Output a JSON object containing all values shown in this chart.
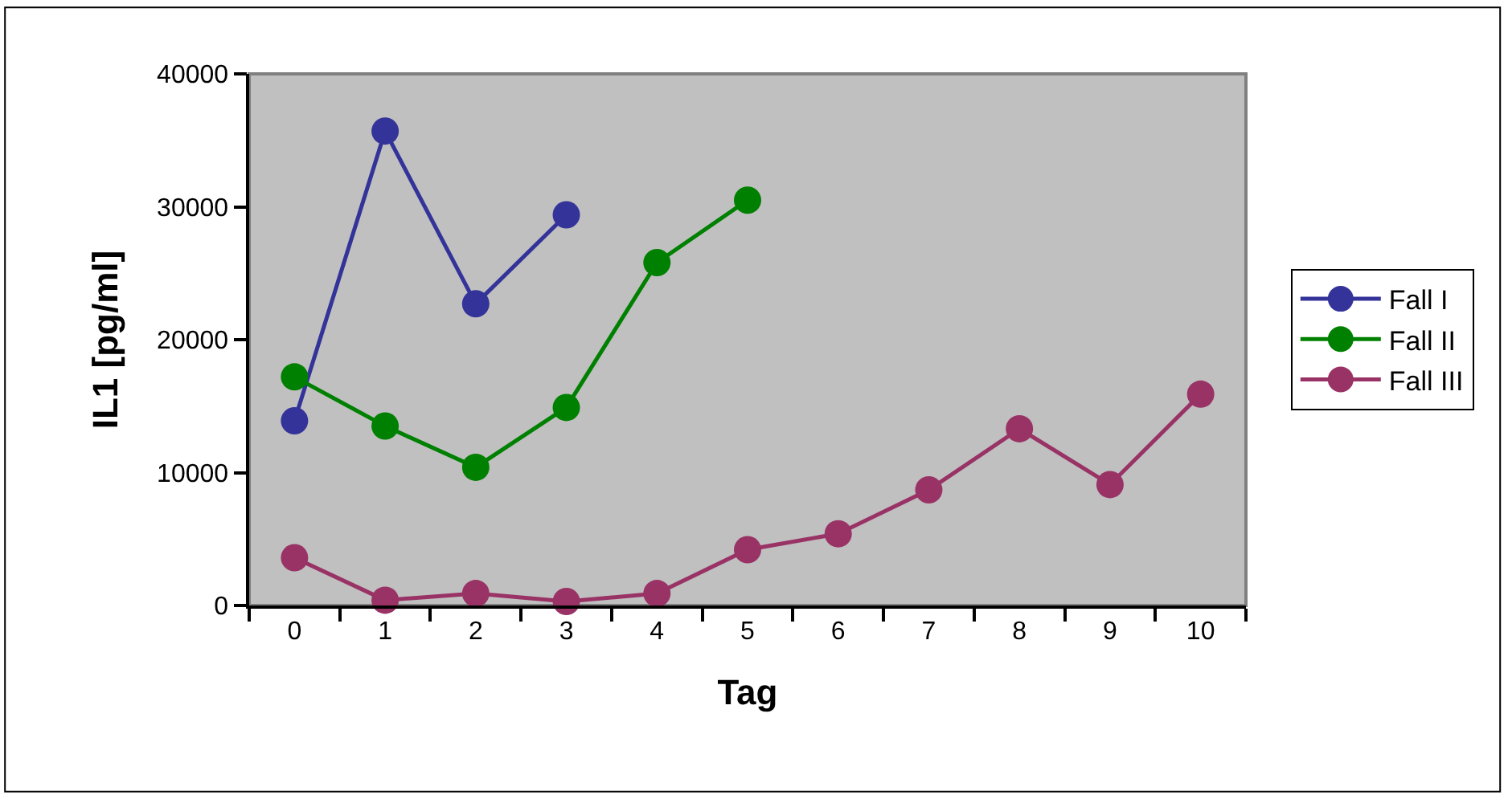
{
  "chart_data": {
    "type": "line",
    "xlabel": "Tag",
    "ylabel": "IL1 [pg/ml]",
    "categories": [
      "0",
      "1",
      "2",
      "3",
      "4",
      "5",
      "6",
      "7",
      "8",
      "9",
      "10"
    ],
    "series": [
      {
        "name": "Fall I",
        "color": "#333399",
        "values": [
          13900,
          35700,
          22700,
          29400,
          null,
          null,
          null,
          null,
          null,
          null,
          null
        ]
      },
      {
        "name": "Fall II",
        "color": "#008000",
        "values": [
          17200,
          13500,
          10400,
          14900,
          25800,
          30500,
          null,
          null,
          null,
          null,
          null
        ]
      },
      {
        "name": "Fall III",
        "color": "#993366",
        "values": [
          3600,
          400,
          900,
          300,
          900,
          4200,
          5400,
          8700,
          13300,
          9100,
          15900
        ]
      }
    ],
    "ylim": [
      0,
      40000
    ],
    "yticks": [
      0,
      10000,
      20000,
      30000,
      40000
    ],
    "grid": false,
    "legend": "right",
    "marker": "circle",
    "line_style": "solid"
  }
}
